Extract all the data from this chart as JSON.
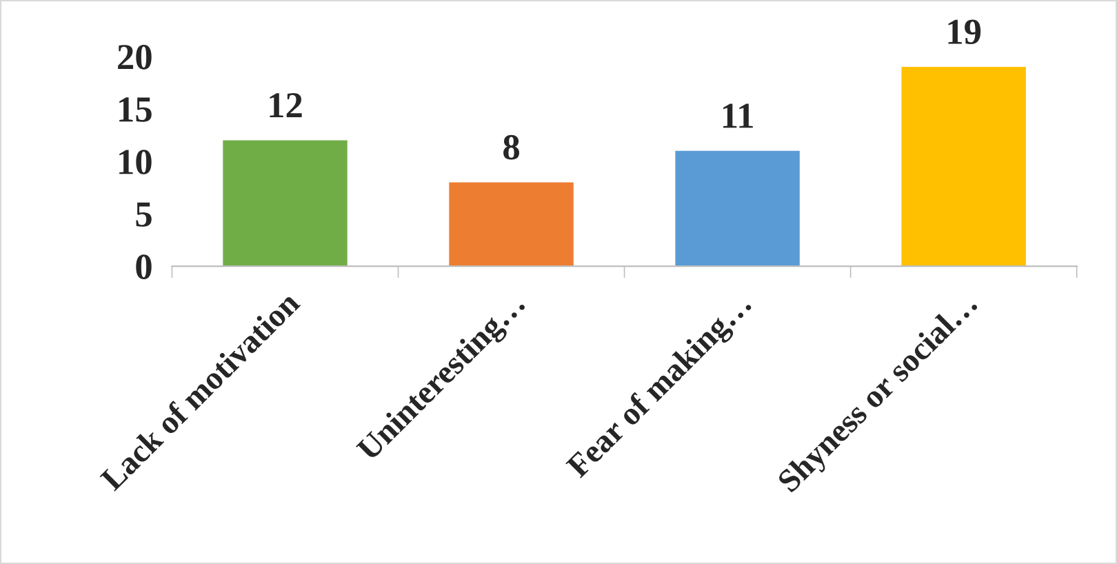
{
  "chart_data": {
    "type": "bar",
    "categories": [
      "Lack of motivation",
      "Uninteresting…",
      "Fear of making…",
      "Shyness or social…"
    ],
    "values": [
      12,
      8,
      11,
      19
    ],
    "colors": [
      "#70ad47",
      "#ed7d31",
      "#5b9bd5",
      "#ffc000"
    ],
    "ylim": [
      0,
      20
    ],
    "yticks": [
      0,
      5,
      10,
      15,
      20
    ],
    "data_labels": true,
    "grid": false,
    "legend": false
  }
}
